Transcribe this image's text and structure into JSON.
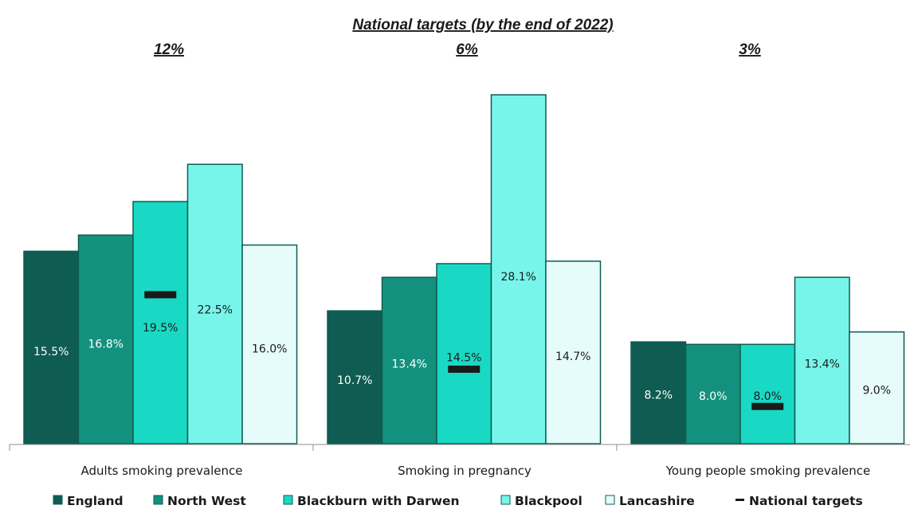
{
  "chart_data": {
    "type": "bar",
    "title": "National targets (by the end of 2022)",
    "target_labels": [
      "12%",
      "6%",
      "3%"
    ],
    "categories": [
      "Adults smoking prevalence",
      "Smoking in pregnancy",
      "Young people smoking prevalence"
    ],
    "series": [
      {
        "name": "England",
        "values": [
          15.5,
          10.7,
          8.2
        ],
        "color": "#0f5c52",
        "label_color": "#ffffff"
      },
      {
        "name": "North West",
        "values": [
          16.8,
          13.4,
          8.0
        ],
        "color": "#14917e",
        "label_color": "#ffffff"
      },
      {
        "name": "Blackburn with Darwen",
        "values": [
          19.5,
          14.5,
          8.0
        ],
        "color": "#1ad9c4",
        "label_color": "#1a1a1a"
      },
      {
        "name": "Blackpool",
        "values": [
          22.5,
          28.1,
          13.4
        ],
        "color": "#78f5ea",
        "label_color": "#1a1a1a"
      },
      {
        "name": "Lancashire",
        "values": [
          16.0,
          14.7,
          9.0
        ],
        "color": "#e6fcfb",
        "label_color": "#1a1a1a"
      }
    ],
    "data_labels": [
      [
        "15.5%",
        "10.7%",
        "8.2%"
      ],
      [
        "16.8%",
        "13.4%",
        "8.0%"
      ],
      [
        "19.5%",
        "14.5%",
        "8.0%"
      ],
      [
        "22.5%",
        "28.1%",
        "13.4%"
      ],
      [
        "16.0%",
        "14.7%",
        "9.0%"
      ]
    ],
    "national_targets": {
      "name": "National targets",
      "values": [
        12,
        6,
        3
      ],
      "color": "#1a1a1a"
    },
    "ylim": [
      0,
      30
    ],
    "grid": false,
    "legend_position": "bottom",
    "bar_outline_color": "#0f5c52"
  }
}
